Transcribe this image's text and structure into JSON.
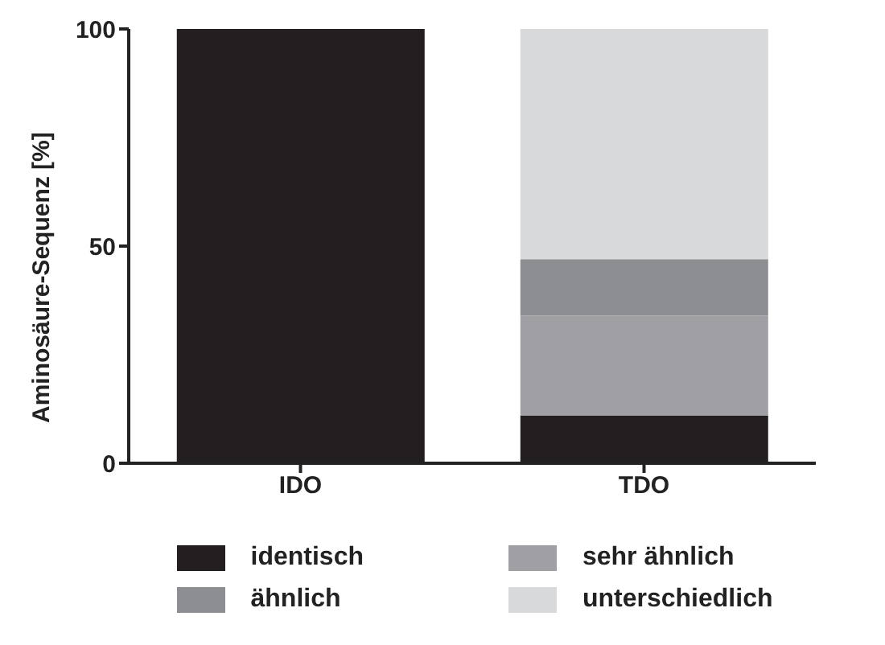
{
  "chart_data": {
    "type": "bar",
    "stacked": true,
    "ylabel": "Aminosäure-Sequenz [%]",
    "categories": [
      "IDO",
      "TDO"
    ],
    "series": [
      {
        "name": "identisch",
        "color": "#231f20",
        "values": [
          100,
          11
        ]
      },
      {
        "name": "sehr ähnlich",
        "color": "#a0a0a4",
        "values": [
          0,
          23
        ]
      },
      {
        "name": "ähnlich",
        "color": "#8d8e91",
        "values": [
          0,
          13
        ]
      },
      {
        "name": "unterschiedlich",
        "color": "#d8d9db",
        "values": [
          0,
          53
        ]
      }
    ],
    "ylim": [
      0,
      100
    ],
    "yticks": [
      0,
      50,
      100
    ],
    "grid": false,
    "legend": "bottom"
  }
}
